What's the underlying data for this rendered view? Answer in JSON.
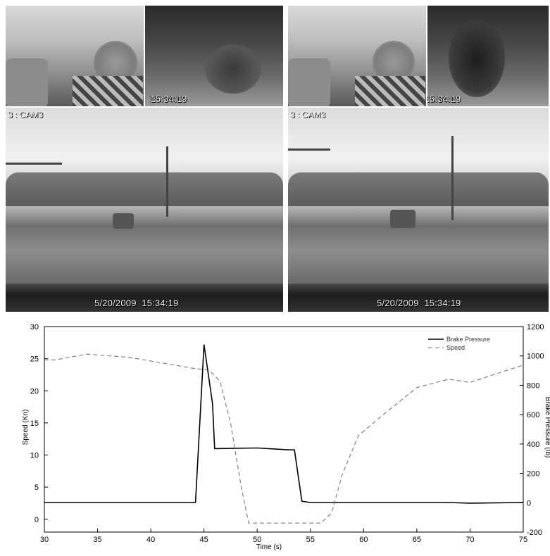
{
  "video": {
    "timestamp": "5/20/2009  15:34:19",
    "cam_label": "3 : CAM3",
    "frames": [
      {
        "name": "left",
        "face": "cabin",
        "foot": "pedal",
        "road": "front"
      },
      {
        "name": "right",
        "face": "cabin",
        "foot": "pedal",
        "road": "front"
      }
    ]
  },
  "chart_data": {
    "type": "line",
    "xlabel": "Time (s)",
    "ylabel": "Speed (Kn)",
    "y2label": "Brake Pressure (Ib)",
    "xlim": [
      30,
      75
    ],
    "ylim": [
      -2,
      30
    ],
    "y2lim": [
      -200,
      1200
    ],
    "x_ticks": [
      30,
      35,
      40,
      45,
      50,
      55,
      60,
      65,
      70,
      75
    ],
    "y_ticks": [
      0,
      5,
      10,
      15,
      20,
      25,
      30
    ],
    "y2_ticks": [
      -200,
      0,
      200,
      400,
      600,
      800,
      1000,
      1200
    ],
    "legend_position": "top-right",
    "grid": false,
    "series": [
      {
        "name": "Brake Pressure",
        "axis": "left",
        "style": "solid",
        "color": "#000000",
        "x": [
          30,
          44.2,
          45.0,
          45.8,
          46.0,
          50.0,
          53.0,
          53.5,
          54.2,
          55.0,
          60,
          65,
          68,
          70,
          75
        ],
        "y": [
          2.6,
          2.6,
          27.2,
          18,
          11.0,
          11.1,
          10.8,
          10.8,
          2.8,
          2.6,
          2.6,
          2.6,
          2.6,
          2.5,
          2.6
        ]
      },
      {
        "name": "Speed",
        "axis": "left",
        "style": "dashed",
        "color": "#777777",
        "x": [
          30,
          31,
          34,
          38,
          44,
          45.5,
          46.5,
          47.5,
          48.5,
          49.2,
          50,
          56,
          57,
          58,
          59.5,
          62,
          65,
          68,
          70,
          72,
          75
        ],
        "y": [
          24.8,
          24.8,
          25.7,
          25.2,
          23.5,
          23.2,
          21.5,
          15,
          5,
          -0.6,
          -0.6,
          -0.6,
          1,
          7,
          13,
          16.5,
          20.5,
          21.8,
          21.3,
          22.4,
          24
        ]
      }
    ]
  }
}
